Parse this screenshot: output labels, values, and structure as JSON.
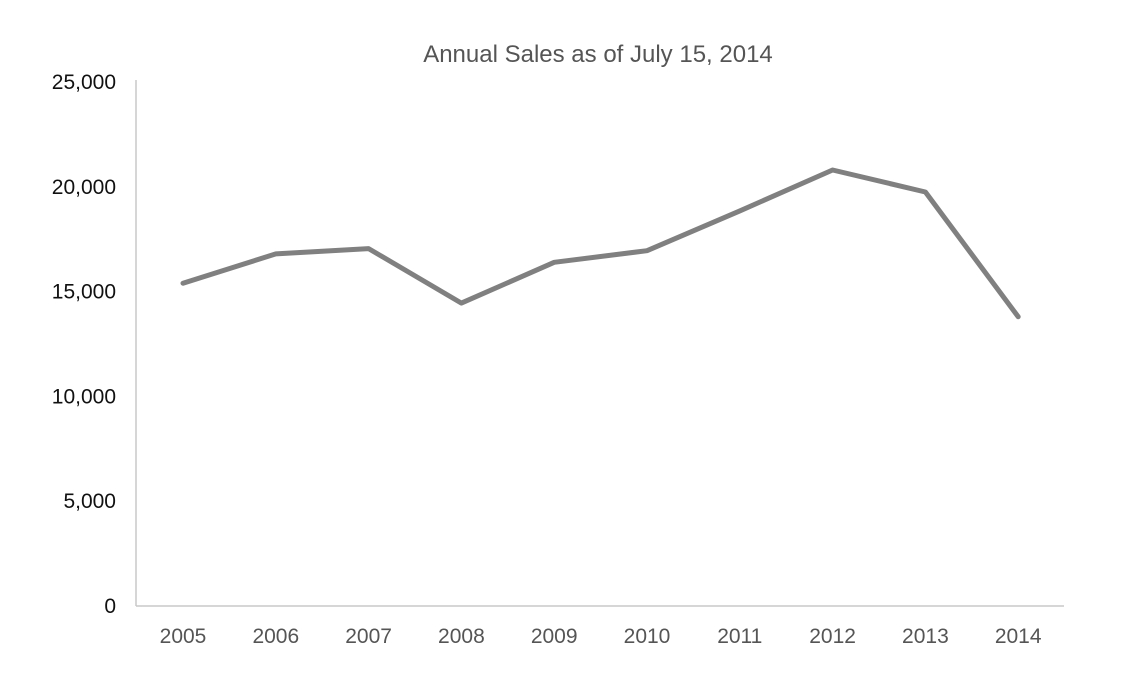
{
  "chart_data": {
    "type": "line",
    "title": "Annual Sales as of July 15, 2014",
    "xlabel": "",
    "ylabel": "",
    "categories": [
      "2005",
      "2006",
      "2007",
      "2008",
      "2009",
      "2010",
      "2011",
      "2012",
      "2013",
      "2014"
    ],
    "series": [
      {
        "values": [
          15400,
          16800,
          17050,
          14450,
          16400,
          16950,
          18850,
          20800,
          19750,
          13800
        ]
      }
    ],
    "y_ticks": [
      "0",
      "5,000",
      "10,000",
      "15,000",
      "20,000",
      "25,000"
    ],
    "ylim": [
      0,
      25000
    ],
    "grid": false,
    "legend": "none",
    "colors": {
      "line": "#808080",
      "axis": "#c8c8c8",
      "title": "#555555",
      "x_tick_text": "#555555",
      "y_tick_text": "#111111"
    }
  }
}
